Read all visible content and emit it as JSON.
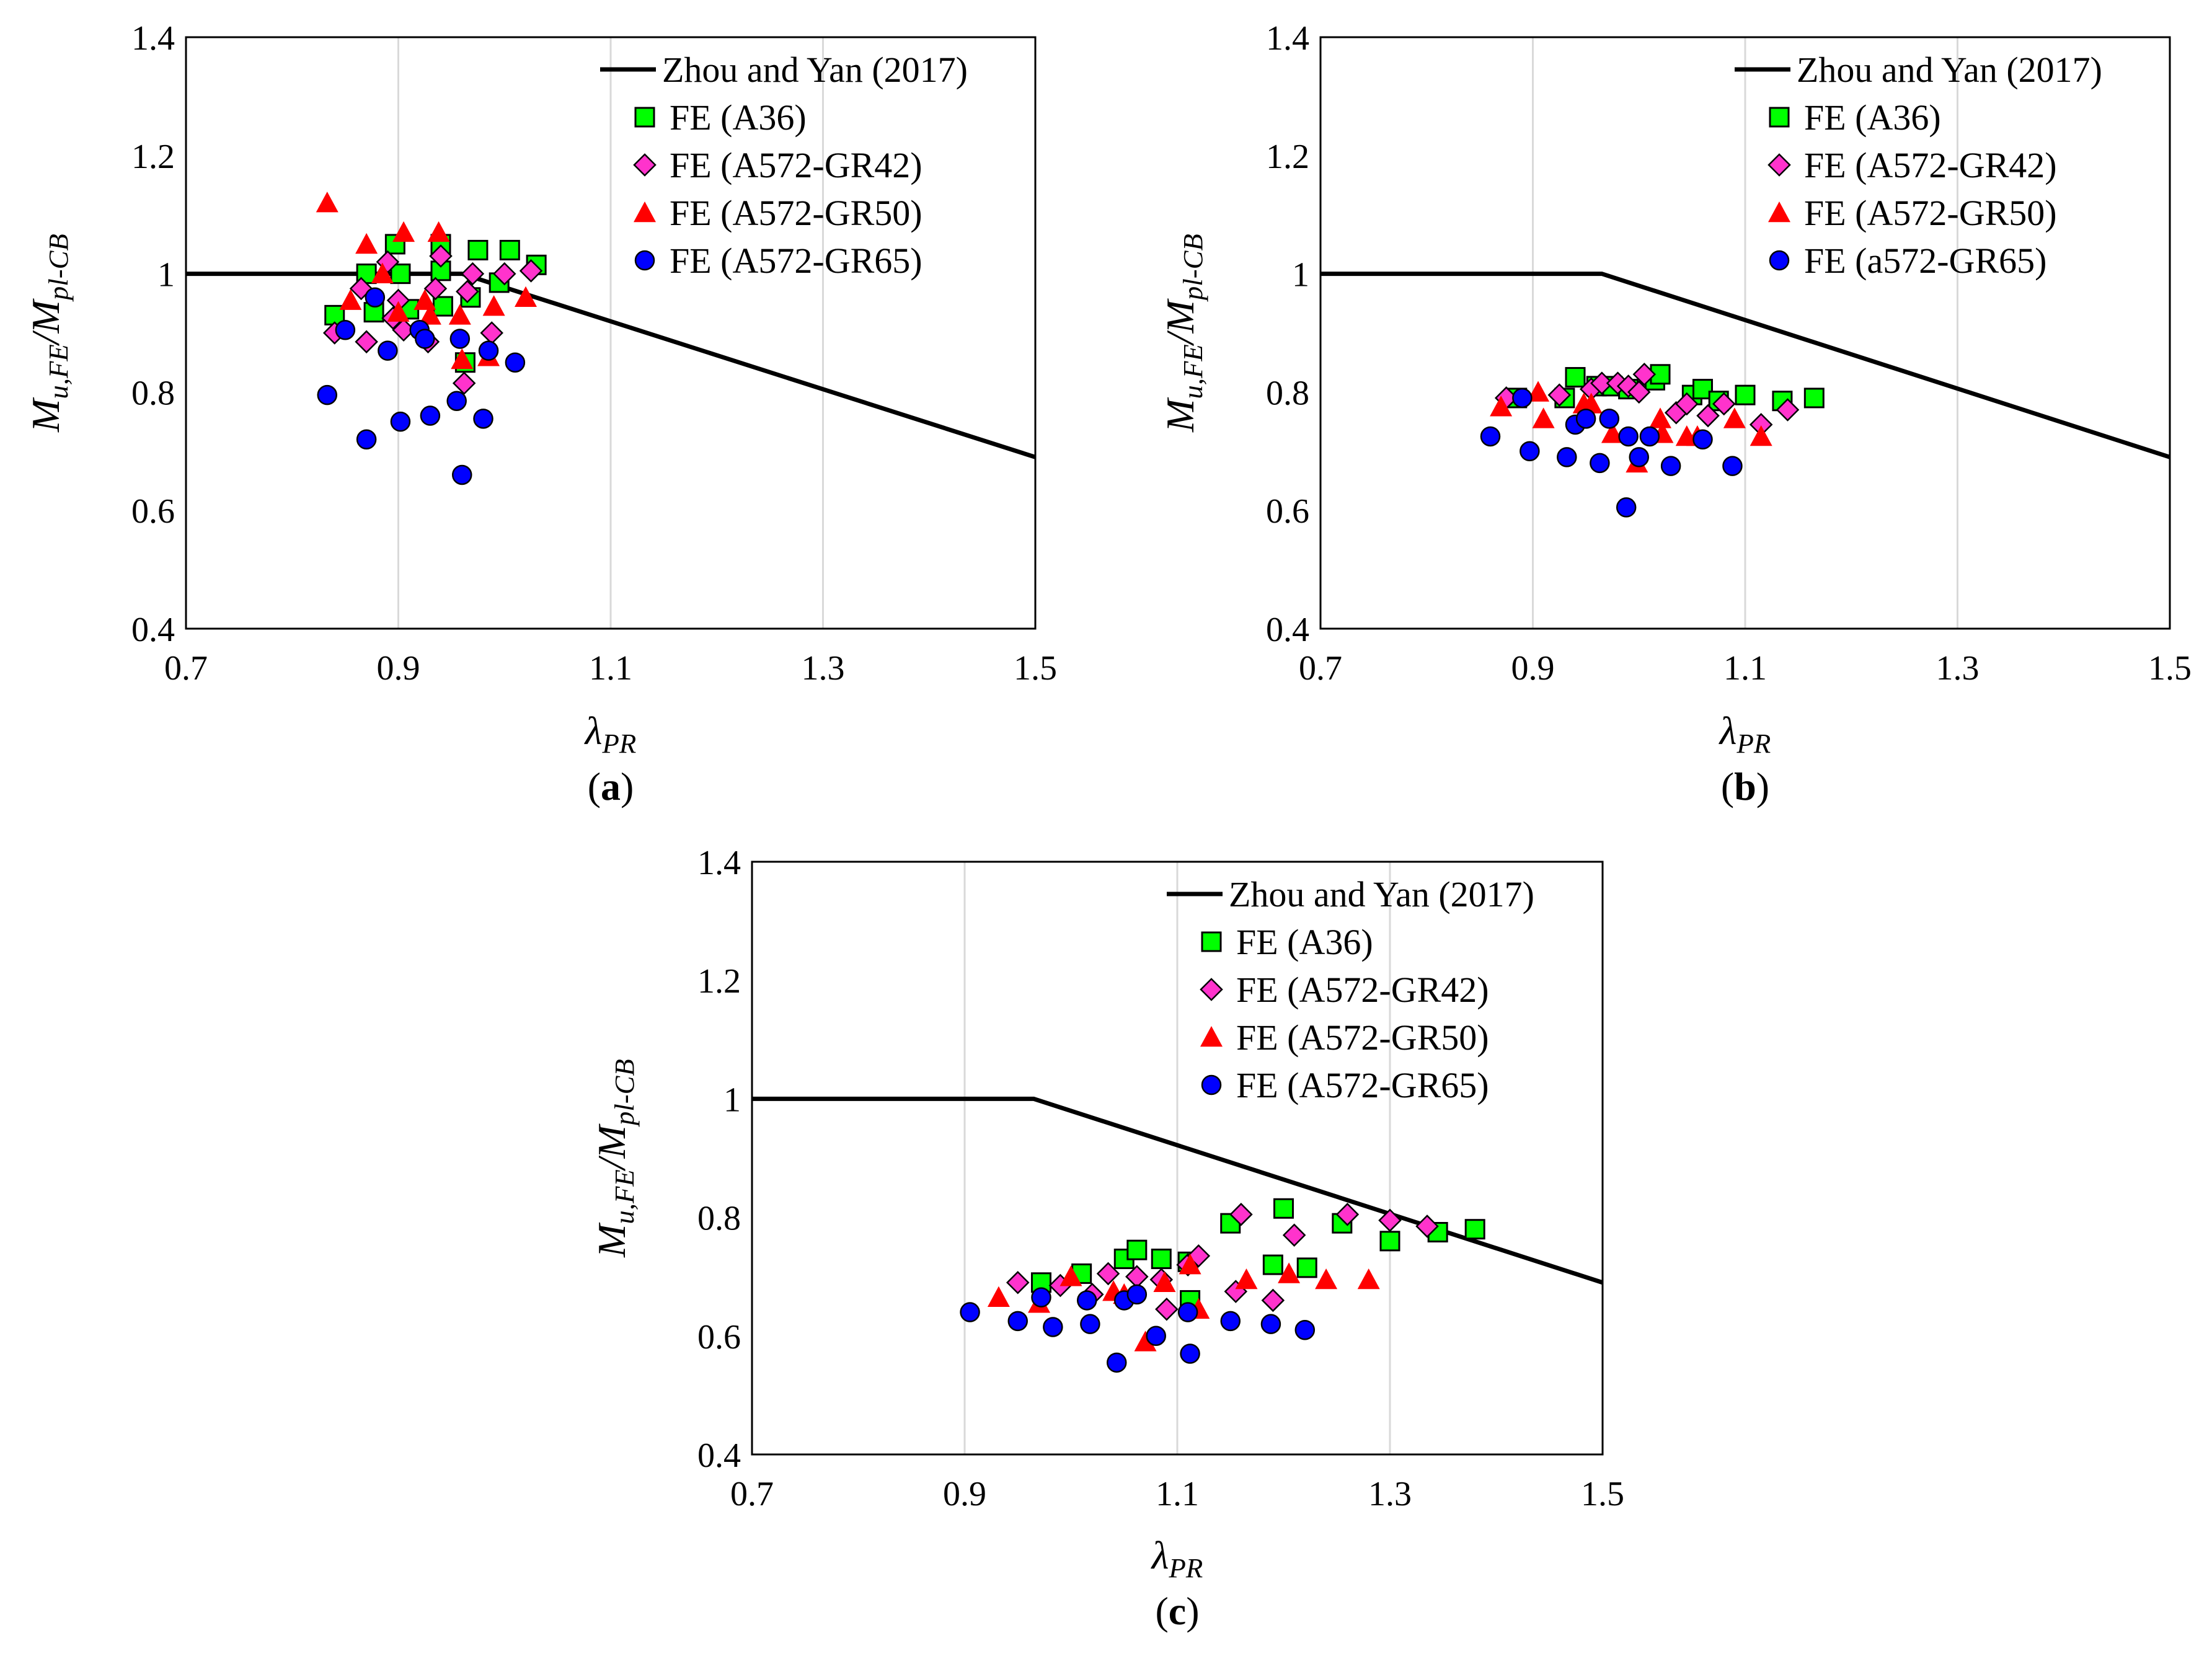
{
  "figure": {
    "ylabel": {
      "main": "M",
      "sub1": "u,FE",
      "slash": "/",
      "main2": "M",
      "sub2": "pl-CB"
    },
    "xlabel": {
      "main": "λ",
      "sub": "PR"
    }
  },
  "style": {
    "line_color": "#000000",
    "grid_color": "#d9d9d9",
    "series_colors": {
      "A36": "#00ff00",
      "A572-GR42": "#ff33cc",
      "A572-GR50": "#ff0000",
      "A572-GR65": "#0000ff"
    },
    "series_markers": {
      "A36": "square",
      "A572-GR42": "diamond",
      "A572-GR50": "triangle",
      "A572-GR65": "circle"
    }
  },
  "chart_data": [
    {
      "panel": "(a)",
      "panel_letter": "a",
      "type": "scatter",
      "xlim": [
        0.7,
        1.5
      ],
      "ylim": [
        0.4,
        1.4
      ],
      "xticks": [
        "0.7",
        "0.9",
        "1.1",
        "1.3",
        "1.5"
      ],
      "yticks": [
        "0.4",
        "0.6",
        "0.8",
        "1",
        "1.2",
        "1.4"
      ],
      "grid": "vertical",
      "legend_position": "top-right",
      "line": {
        "name": "Zhou and Yan (2017)",
        "x": [
          0.7,
          0.95,
          0.96,
          1.5
        ],
        "y": [
          1.0,
          1.0,
          1.0,
          0.69
        ]
      },
      "series": [
        {
          "name": "FE (A36)",
          "key": "A36",
          "x": [
            0.84,
            0.87,
            0.877,
            0.897,
            0.902,
            0.91,
            0.94,
            0.94,
            0.942,
            0.963,
            0.968,
            0.975,
            0.995,
            1.005,
            1.03
          ],
          "y": [
            0.93,
            1.0,
            0.935,
            1.05,
            1.0,
            0.94,
            1.05,
            1.005,
            0.945,
            0.85,
            0.96,
            1.04,
            0.985,
            1.04,
            1.015
          ]
        },
        {
          "name": "FE (A572-GR42)",
          "key": "A572-GR42",
          "x": [
            0.84,
            0.865,
            0.87,
            0.89,
            0.895,
            0.9,
            0.905,
            0.928,
            0.935,
            0.94,
            0.962,
            0.965,
            0.97,
            0.988,
            1.0,
            1.025
          ],
          "y": [
            0.9,
            0.975,
            0.885,
            1.02,
            0.925,
            0.955,
            0.905,
            0.885,
            0.975,
            1.03,
            0.815,
            0.97,
            1.0,
            0.9,
            1.0,
            1.005
          ]
        },
        {
          "name": "FE (A572-GR50)",
          "key": "A572-GR50",
          "x": [
            0.833,
            0.855,
            0.87,
            0.885,
            0.9,
            0.905,
            0.925,
            0.93,
            0.938,
            0.958,
            0.96,
            0.985,
            0.99,
            1.02
          ],
          "y": [
            1.12,
            0.955,
            1.05,
            1.0,
            0.935,
            1.07,
            0.955,
            0.93,
            1.07,
            0.93,
            0.855,
            0.86,
            0.945,
            0.96
          ]
        },
        {
          "name": "FE (A572-GR65)",
          "key": "A572-GR65",
          "x": [
            0.833,
            0.85,
            0.87,
            0.878,
            0.89,
            0.902,
            0.92,
            0.925,
            0.93,
            0.955,
            0.958,
            0.96,
            0.98,
            0.985,
            1.01
          ],
          "y": [
            0.795,
            0.905,
            0.72,
            0.96,
            0.87,
            0.75,
            0.905,
            0.89,
            0.76,
            0.785,
            0.89,
            0.66,
            0.755,
            0.87,
            0.85
          ]
        }
      ]
    },
    {
      "panel": "(b)",
      "panel_letter": "b",
      "type": "scatter",
      "xlim": [
        0.7,
        1.5
      ],
      "ylim": [
        0.4,
        1.4
      ],
      "xticks": [
        "0.7",
        "0.9",
        "1.1",
        "1.3",
        "1.5"
      ],
      "yticks": [
        "0.4",
        "0.6",
        "0.8",
        "1",
        "1.2",
        "1.4"
      ],
      "grid": "vertical",
      "legend_position": "top-right",
      "line": {
        "name": "Zhou and Yan (2017)",
        "x": [
          0.7,
          0.955,
          0.965,
          1.5
        ],
        "y": [
          1.0,
          1.0,
          1.0,
          0.69
        ]
      },
      "series": [
        {
          "name": "FE (A36)",
          "key": "A36",
          "x": [
            0.885,
            0.93,
            0.94,
            0.96,
            0.975,
            0.99,
            1.015,
            1.02,
            1.05,
            1.06,
            1.075,
            1.1,
            1.135,
            1.165
          ],
          "y": [
            0.79,
            0.79,
            0.825,
            0.81,
            0.81,
            0.805,
            0.82,
            0.83,
            0.795,
            0.805,
            0.785,
            0.795,
            0.785,
            0.79
          ]
        },
        {
          "name": "FE (A572-GR42)",
          "key": "A572-GR42",
          "x": [
            0.875,
            0.925,
            0.955,
            0.965,
            0.98,
            0.99,
            1.0,
            1.005,
            1.035,
            1.045,
            1.065,
            1.08,
            1.115,
            1.14
          ],
          "y": [
            0.79,
            0.795,
            0.805,
            0.815,
            0.815,
            0.81,
            0.8,
            0.83,
            0.765,
            0.78,
            0.76,
            0.78,
            0.745,
            0.77
          ]
        },
        {
          "name": "FE (A572-GR50)",
          "key": "A572-GR50",
          "x": [
            0.87,
            0.905,
            0.91,
            0.948,
            0.955,
            0.975,
            0.998,
            1.02,
            1.022,
            1.045,
            1.055,
            1.09,
            1.115
          ],
          "y": [
            0.775,
            0.8,
            0.755,
            0.78,
            0.78,
            0.73,
            0.68,
            0.755,
            0.73,
            0.725,
            0.725,
            0.755,
            0.725
          ]
        },
        {
          "name": "FE (a572-GR65)",
          "key": "A572-GR65",
          "x": [
            0.86,
            0.89,
            0.897,
            0.932,
            0.94,
            0.95,
            0.963,
            0.972,
            0.988,
            0.99,
            1.0,
            1.01,
            1.03,
            1.06,
            1.088
          ],
          "y": [
            0.725,
            0.79,
            0.7,
            0.69,
            0.745,
            0.755,
            0.68,
            0.755,
            0.605,
            0.725,
            0.69,
            0.725,
            0.675,
            0.72,
            0.675
          ]
        }
      ]
    },
    {
      "panel": "(c)",
      "panel_letter": "c",
      "type": "scatter",
      "xlim": [
        0.7,
        1.5
      ],
      "ylim": [
        0.4,
        1.4
      ],
      "xticks": [
        "0.7",
        "0.9",
        "1.1",
        "1.3",
        "1.5"
      ],
      "yticks": [
        "0.4",
        "0.6",
        "0.8",
        "1",
        "1.2",
        "1.4"
      ],
      "grid": "vertical",
      "legend_position": "top-right",
      "line": {
        "name": "Zhou and Yan (2017)",
        "x": [
          0.7,
          0.955,
          0.965,
          1.5
        ],
        "y": [
          1.0,
          1.0,
          1.0,
          0.69
        ]
      },
      "series": [
        {
          "name": "FE (A36)",
          "key": "A36",
          "x": [
            0.972,
            1.01,
            1.05,
            1.062,
            1.085,
            1.11,
            1.112,
            1.15,
            1.19,
            1.2,
            1.222,
            1.255,
            1.3,
            1.345,
            1.38
          ],
          "y": [
            0.69,
            0.705,
            0.73,
            0.745,
            0.73,
            0.725,
            0.66,
            0.79,
            0.72,
            0.815,
            0.715,
            0.79,
            0.76,
            0.775,
            0.78
          ]
        },
        {
          "name": "FE (A572-GR42)",
          "key": "A572-GR42",
          "x": [
            0.95,
            0.99,
            1.02,
            1.035,
            1.062,
            1.085,
            1.09,
            1.11,
            1.12,
            1.155,
            1.16,
            1.19,
            1.21,
            1.26,
            1.3,
            1.335
          ],
          "y": [
            0.69,
            0.685,
            0.67,
            0.705,
            0.7,
            0.695,
            0.645,
            0.72,
            0.735,
            0.675,
            0.805,
            0.66,
            0.77,
            0.805,
            0.795,
            0.785
          ]
        },
        {
          "name": "FE (A572-GR50)",
          "key": "A572-GR50",
          "x": [
            0.932,
            0.97,
            1.0,
            1.04,
            1.05,
            1.07,
            1.088,
            1.112,
            1.12,
            1.165,
            1.205,
            1.24,
            1.28
          ],
          "y": [
            0.665,
            0.655,
            0.7,
            0.675,
            0.67,
            0.59,
            0.69,
            0.72,
            0.645,
            0.695,
            0.705,
            0.695,
            0.695
          ]
        },
        {
          "name": "FE (A572-GR65)",
          "key": "A572-GR65",
          "x": [
            0.905,
            0.95,
            0.972,
            0.983,
            1.015,
            1.018,
            1.043,
            1.05,
            1.062,
            1.08,
            1.11,
            1.112,
            1.15,
            1.188,
            1.22
          ],
          "y": [
            0.64,
            0.625,
            0.665,
            0.615,
            0.66,
            0.62,
            0.555,
            0.66,
            0.67,
            0.6,
            0.64,
            0.57,
            0.625,
            0.62,
            0.61
          ]
        }
      ]
    }
  ]
}
